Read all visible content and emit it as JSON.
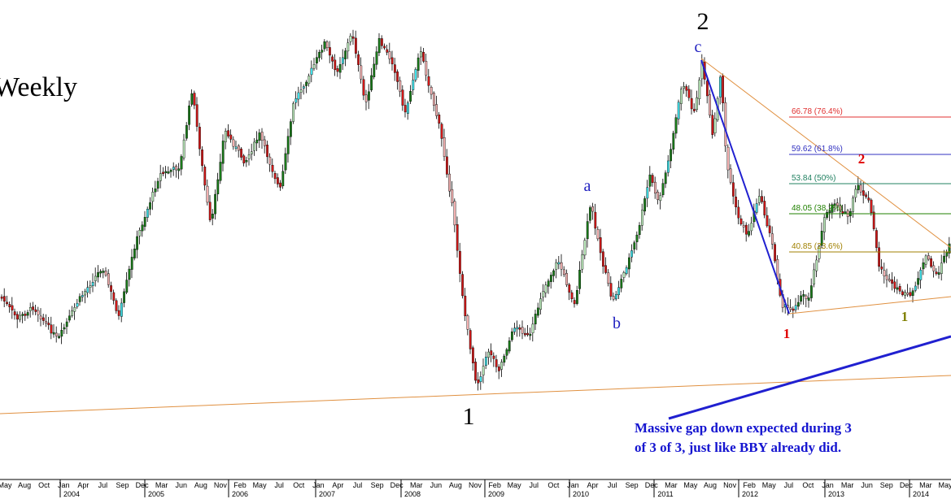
{
  "chart_data": {
    "type": "candlestick",
    "title": "Weekly",
    "x_months": [
      "May",
      "Aug",
      "Oct",
      "Jan",
      "Apr",
      "Jul",
      "Sep",
      "Dec",
      "Mar",
      "Jun",
      "Aug",
      "Nov",
      "Feb",
      "May",
      "Jul",
      "Oct",
      "Jan",
      "Apr",
      "Jul",
      "Sep",
      "Dec",
      "Mar",
      "Jun",
      "Aug",
      "Nov",
      "Feb",
      "May",
      "Jul",
      "Oct",
      "Jan",
      "Apr",
      "Jul",
      "Sep",
      "Dec",
      "Mar",
      "May",
      "Aug",
      "Nov",
      "Feb",
      "May",
      "Jul",
      "Oct",
      "Jan",
      "Mar",
      "Jun",
      "Sep",
      "Dec",
      "Mar",
      "May"
    ],
    "x_years": [
      "2004",
      "2005",
      "2006",
      "2007",
      "2008",
      "2009",
      "2010",
      "2011",
      "2012",
      "2013",
      "2014"
    ],
    "fib_levels": [
      {
        "label": "66.78 (76.4%)",
        "color": "#e03030"
      },
      {
        "label": "59.62 (61.8%)",
        "color": "#3030c0"
      },
      {
        "label": "53.84 (50%)",
        "color": "#208060"
      },
      {
        "label": "48.05 (38.2%)",
        "color": "#208000"
      },
      {
        "label": "40.85 (23.6%)",
        "color": "#a08000"
      }
    ],
    "wave_labels": [
      {
        "text": "2",
        "color": "#000000"
      },
      {
        "text": "1",
        "color": "#000000"
      },
      {
        "text": "c",
        "color": "#2020c0"
      },
      {
        "text": "a",
        "color": "#2020c0"
      },
      {
        "text": "b",
        "color": "#2020c0"
      },
      {
        "text": "1",
        "color": "#e00000"
      },
      {
        "text": "2",
        "color": "#e00000"
      },
      {
        "text": "1",
        "color": "#808000"
      }
    ],
    "annotation": [
      "Massive gap down expected during 3",
      "of 3 of 3, just like BBY already did."
    ],
    "colors": {
      "up_strong": "#1a7a1a",
      "up_weak": "#b8e6b8",
      "down_strong": "#d01818",
      "down_weak": "#f2b0b0",
      "cyan": "#40e0e8",
      "trend_orange": "#e09040",
      "trend_blue": "#2020d0"
    }
  }
}
